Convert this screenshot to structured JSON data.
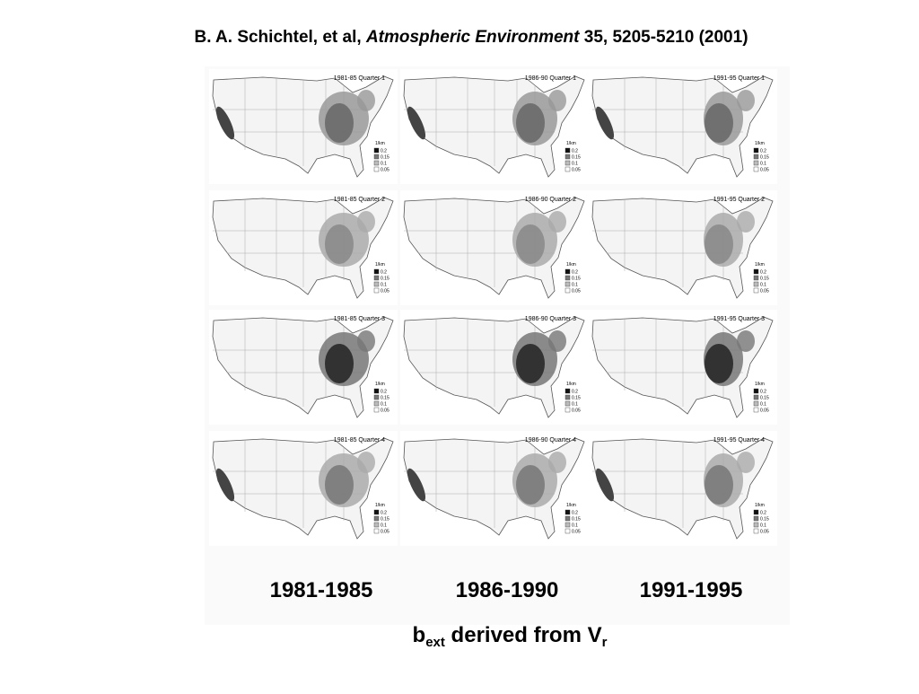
{
  "header": {
    "author": "B. A. Schichtel, et al, ",
    "journal": "Atmospheric Environment",
    "citation": " 35, 5205-5210 (2001)"
  },
  "maps": [
    {
      "label": "1981-85 Quarter 1"
    },
    {
      "label": "1986-90 Quarter 1"
    },
    {
      "label": "1991-95 Quarter 1"
    },
    {
      "label": "1981-85 Quarter 2"
    },
    {
      "label": "1986-90 Quarter 2"
    },
    {
      "label": "1991-95 Quarter 2"
    },
    {
      "label": "1981-85 Quarter 3"
    },
    {
      "label": "1986-90 Quarter 3"
    },
    {
      "label": "1991-95 Quarter 3"
    },
    {
      "label": "1981-85 Quarter 4"
    },
    {
      "label": "1986-90 Quarter 4"
    },
    {
      "label": "1991-95 Quarter 4"
    }
  ],
  "legend": {
    "unit": "1/km",
    "values": [
      "0.2",
      "0.15",
      "0.1",
      "0.05"
    ]
  },
  "columns": [
    "1981-1985",
    "1986-1990",
    "1991-1995"
  ],
  "caption": {
    "symbol": "b",
    "symbol_sub": "ext",
    "text": " derived from V",
    "text_sub": "r"
  }
}
